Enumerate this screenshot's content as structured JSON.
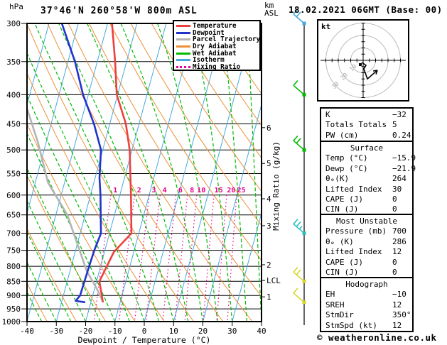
{
  "header": {
    "pressure_unit_label": "hPa",
    "station_title": "37°46'N 260°58'W 800m ASL",
    "datetime_title": "18.02.2021 06GMT (Base: 00)",
    "altitude_unit_line1": "km",
    "altitude_unit_line2": "ASL"
  },
  "legend": {
    "items": [
      {
        "label": "Temperature",
        "color": "#ee3f3f",
        "dash": false
      },
      {
        "label": "Dewpoint",
        "color": "#2233cc",
        "dash": false
      },
      {
        "label": "Parcel Trajectory",
        "color": "#b4b4b4",
        "dash": false
      },
      {
        "label": "Dry Adiabat",
        "color": "#ec9138",
        "dash": false
      },
      {
        "label": "Wet Adiabat",
        "color": "#00bb00",
        "dash": false
      },
      {
        "label": "Isotherm",
        "color": "#44aadd",
        "dash": false
      },
      {
        "label": "Mixing Ratio",
        "color": "#e8008c",
        "dash": true
      }
    ]
  },
  "axes": {
    "pressure_ticks": [
      300,
      350,
      400,
      450,
      500,
      550,
      600,
      650,
      700,
      750,
      800,
      850,
      900,
      950,
      1000
    ],
    "temperature_ticks": [
      -40,
      -30,
      -20,
      -10,
      0,
      10,
      20,
      30,
      40
    ],
    "temperature_axis_label": "Dewpoint / Temperature (°C)",
    "km_asl_ticks": [
      {
        "km": 6,
        "p": 457
      },
      {
        "km": 5,
        "p": 528
      },
      {
        "km": 4,
        "p": 609
      },
      {
        "km": 3,
        "p": 679
      },
      {
        "km": 2,
        "p": 795
      },
      {
        "km": 1,
        "p": 905
      }
    ],
    "lcl": {
      "label": "LCL",
      "p": 847
    },
    "mixing_ratio_axis_label": "Mixing Ratio (g/kg)",
    "mixing_ratio_lines": [
      1,
      2,
      3,
      4,
      6,
      8,
      10,
      15,
      20,
      25
    ]
  },
  "hodograph": {
    "unit_label": "kt",
    "ring_radii_kt": [
      10,
      20,
      30
    ],
    "trace_points_kt": [
      [
        -1.1,
        -1.7
      ],
      [
        2.3,
        -4.0
      ],
      [
        0.6,
        -6.9
      ],
      [
        3.4,
        -14.9
      ],
      [
        11.4,
        -8.0
      ]
    ],
    "origin_dot_kt": [
      -2.3,
      -3.4
    ]
  },
  "indices": {
    "sections": [
      {
        "title": "",
        "rows": [
          {
            "label": "K",
            "value": "−32"
          },
          {
            "label": "Totals Totals",
            "value": "5"
          },
          {
            "label": "PW (cm)",
            "value": "0.24"
          }
        ]
      },
      {
        "title": "Surface",
        "rows": [
          {
            "label": "Temp (°C)",
            "value": "−15.9"
          },
          {
            "label": "Dewp (°C)",
            "value": "−21.9"
          },
          {
            "label": "θₑ(K)",
            "value": "264"
          },
          {
            "label": "Lifted Index",
            "value": "30"
          },
          {
            "label": "CAPE (J)",
            "value": "0"
          },
          {
            "label": "CIN (J)",
            "value": "0"
          }
        ]
      },
      {
        "title": "Most Unstable",
        "rows": [
          {
            "label": "Pressure (mb)",
            "value": "700"
          },
          {
            "label": "θₑ (K)",
            "value": "286"
          },
          {
            "label": "Lifted Index",
            "value": "12"
          },
          {
            "label": "CAPE (J)",
            "value": "0"
          },
          {
            "label": "CIN (J)",
            "value": "0"
          }
        ]
      },
      {
        "title": "Hodograph",
        "rows": [
          {
            "label": "EH",
            "value": "−10"
          },
          {
            "label": "SREH",
            "value": "12"
          },
          {
            "label": "StmDir",
            "value": "350°"
          },
          {
            "label": "StmSpd (kt)",
            "value": "12"
          }
        ]
      }
    ]
  },
  "footer": {
    "copyright": "© weatheronline.co.uk"
  },
  "chart_data": {
    "type": "skew-t-log-p-sounding",
    "pressure_range_hpa": [
      300,
      1000
    ],
    "temperature_range_c": [
      -40,
      40
    ],
    "temperature_profile": [
      [
        300,
        -38.5
      ],
      [
        350,
        -33.9
      ],
      [
        400,
        -30.3
      ],
      [
        450,
        -24.5
      ],
      [
        500,
        -20.8
      ],
      [
        550,
        -18.4
      ],
      [
        600,
        -16.2
      ],
      [
        650,
        -14.3
      ],
      [
        700,
        -12.5
      ],
      [
        755,
        -16.8
      ],
      [
        850,
        -19.0
      ],
      [
        925,
        -15.9
      ]
    ],
    "dewpoint_profile": [
      [
        300,
        -55.6
      ],
      [
        350,
        -47.6
      ],
      [
        400,
        -41.8
      ],
      [
        450,
        -35.4
      ],
      [
        500,
        -30.6
      ],
      [
        560,
        -28.5
      ],
      [
        600,
        -26.6
      ],
      [
        650,
        -24.7
      ],
      [
        700,
        -22.9
      ],
      [
        750,
        -23.6
      ],
      [
        800,
        -23.9
      ],
      [
        850,
        -24.1
      ],
      [
        900,
        -24.3
      ],
      [
        920,
        -25.3
      ],
      [
        925,
        -21.9
      ]
    ],
    "parcel_profile": [
      [
        420,
        -60.0
      ],
      [
        485,
        -52.8
      ],
      [
        570,
        -45.7
      ],
      [
        650,
        -36.1
      ],
      [
        815,
        -24.3
      ],
      [
        880,
        -18.9
      ],
      [
        925,
        -15.8
      ]
    ],
    "wind_levels": [
      {
        "p": 300,
        "color": "#44aadd",
        "ticks": 2
      },
      {
        "p": 400,
        "color": "#00bb00",
        "ticks": 1
      },
      {
        "p": 500,
        "color": "#00bb00",
        "ticks": 2
      },
      {
        "p": 700,
        "color": "#2abfbf",
        "ticks": 3
      },
      {
        "p": 850,
        "color": "#d6d62a",
        "ticks": 2
      },
      {
        "p": 925,
        "color": "#d6d62a",
        "ticks": 1
      }
    ],
    "surface": {
      "temp_c": -15.9,
      "dewp_c": -21.9
    }
  }
}
